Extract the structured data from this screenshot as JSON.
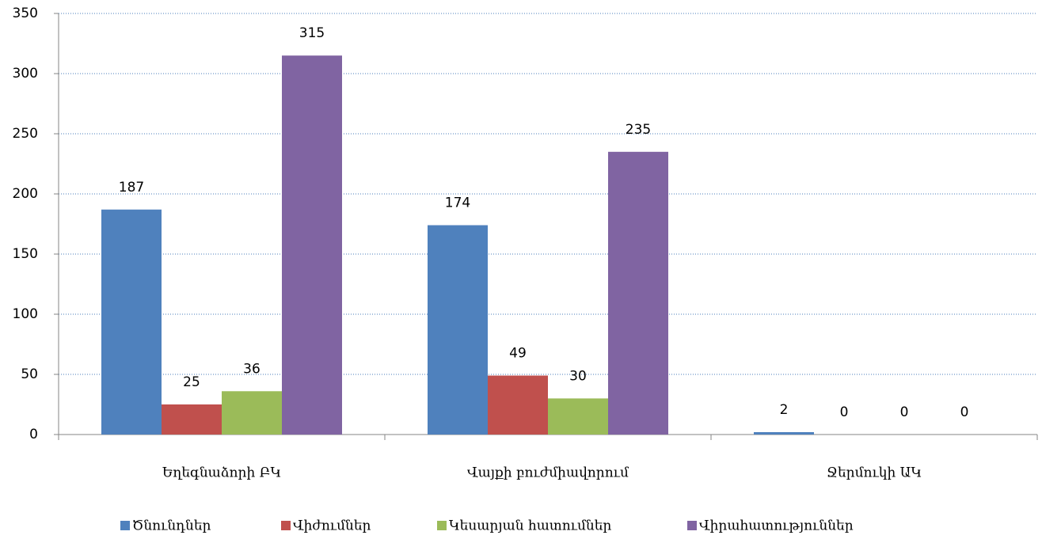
{
  "chart_data": {
    "type": "bar",
    "categories": [
      "Եղեգնաձորի ԲԿ",
      "Վայքի բուժմիավորում",
      "Ջերմուկի ԱԿ"
    ],
    "series": [
      {
        "name": "Ծնունդներ",
        "color": "#4f81bd",
        "values": [
          187,
          174,
          2
        ]
      },
      {
        "name": "Վիժումներ",
        "color": "#c0504d",
        "values": [
          25,
          49,
          0
        ]
      },
      {
        "name": "Կեսարյան հատումներ",
        "color": "#9bbb59",
        "values": [
          36,
          30,
          0
        ]
      },
      {
        "name": "Վիրահատություններ",
        "color": "#8064a2",
        "values": [
          315,
          235,
          0
        ]
      }
    ],
    "ylim": [
      0,
      350
    ],
    "yticks": [
      0,
      50,
      100,
      150,
      200,
      250,
      300,
      350
    ],
    "grid": true,
    "legend": "bottom"
  }
}
